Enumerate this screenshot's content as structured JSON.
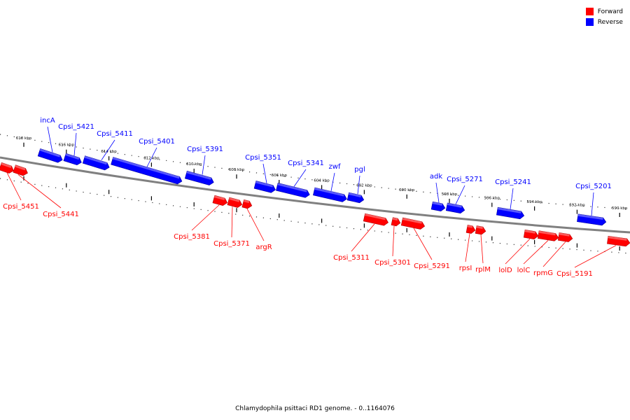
{
  "colors": {
    "forward": "#ff0000",
    "reverse": "#0000ff",
    "axis": "#808080"
  },
  "legend": {
    "forward_label": "Forward",
    "reverse_label": "Reverse"
  },
  "caption": "Chlamydophila psittaci RD1 genome. - 0..1164076",
  "ticks": [
    {
      "label": "618 kbp",
      "kbp": 618
    },
    {
      "label": "616 kbp",
      "kbp": 616
    },
    {
      "label": "614 kbp",
      "kbp": 614
    },
    {
      "label": "612 kbp",
      "kbp": 612
    },
    {
      "label": "610 kbp",
      "kbp": 610
    },
    {
      "label": "608 kbp",
      "kbp": 608
    },
    {
      "label": "606 kbp",
      "kbp": 606
    },
    {
      "label": "604 kbp",
      "kbp": 604
    },
    {
      "label": "602 kbp",
      "kbp": 602
    },
    {
      "label": "600 kbp",
      "kbp": 600
    },
    {
      "label": "598 kbp",
      "kbp": 598
    },
    {
      "label": "596 kbp",
      "kbp": 596
    },
    {
      "label": "594 kbp",
      "kbp": 594
    },
    {
      "label": "592 kbp",
      "kbp": 592
    },
    {
      "label": "590 kbp",
      "kbp": 590
    }
  ],
  "genes": [
    {
      "name": "Cpsi_5451",
      "strand": "forward"
    },
    {
      "name": "Cpsi_5441",
      "strand": "forward"
    },
    {
      "name": "incA",
      "strand": "reverse"
    },
    {
      "name": "Cpsi_5421",
      "strand": "reverse"
    },
    {
      "name": "Cpsi_5411",
      "strand": "reverse"
    },
    {
      "name": "Cpsi_5401",
      "strand": "reverse"
    },
    {
      "name": "Cpsi_5391",
      "strand": "reverse"
    },
    {
      "name": "Cpsi_5381",
      "strand": "forward"
    },
    {
      "name": "Cpsi_5371",
      "strand": "forward"
    },
    {
      "name": "argR",
      "strand": "forward"
    },
    {
      "name": "Cpsi_5351",
      "strand": "reverse"
    },
    {
      "name": "Cpsi_5341",
      "strand": "reverse"
    },
    {
      "name": "zwf",
      "strand": "reverse"
    },
    {
      "name": "pgl",
      "strand": "reverse"
    },
    {
      "name": "Cpsi_5311",
      "strand": "forward"
    },
    {
      "name": "Cpsi_5301",
      "strand": "forward"
    },
    {
      "name": "Cpsi_5291",
      "strand": "forward"
    },
    {
      "name": "adk",
      "strand": "reverse"
    },
    {
      "name": "Cpsi_5271",
      "strand": "reverse"
    },
    {
      "name": "rpsI",
      "strand": "forward"
    },
    {
      "name": "rplM",
      "strand": "forward"
    },
    {
      "name": "Cpsi_5241",
      "strand": "reverse"
    },
    {
      "name": "lolD",
      "strand": "forward"
    },
    {
      "name": "lolC",
      "strand": "forward"
    },
    {
      "name": "rpmG",
      "strand": "forward"
    },
    {
      "name": "Cpsi_5201",
      "strand": "reverse"
    },
    {
      "name": "Cpsi_5191",
      "strand": "forward"
    }
  ]
}
